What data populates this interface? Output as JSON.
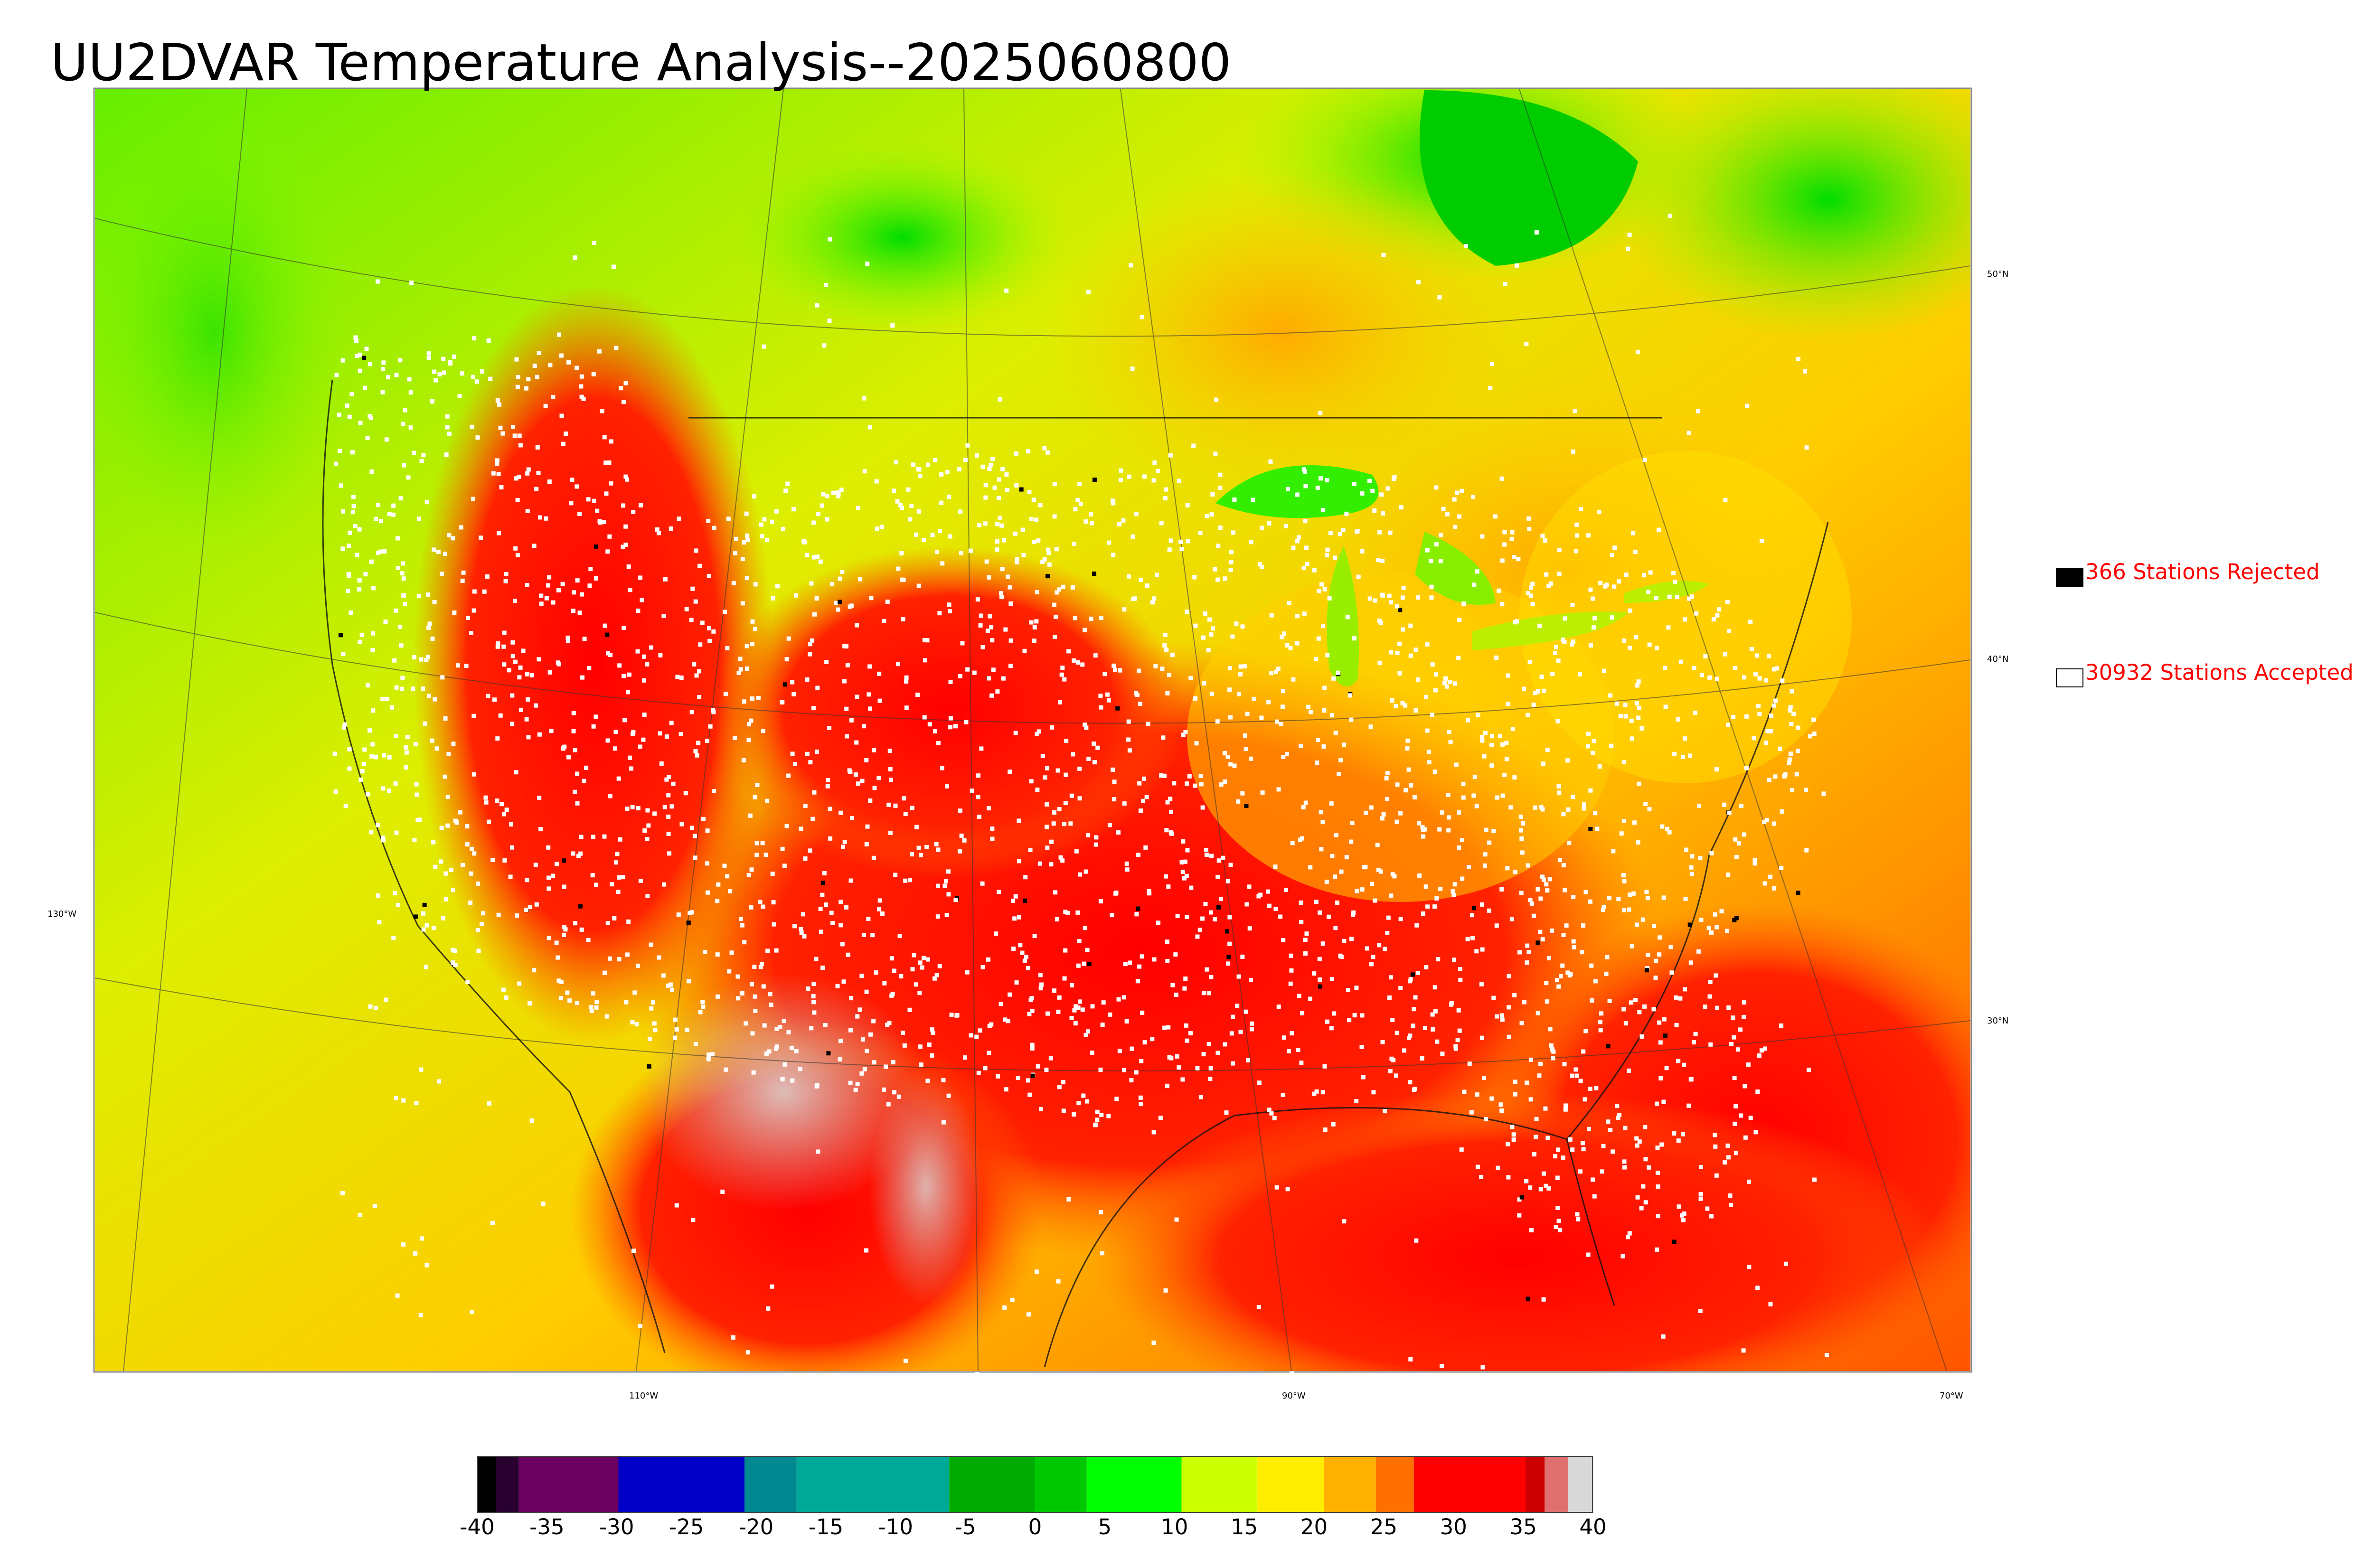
{
  "title": "UU2DVAR Temperature Analysis--2025060800",
  "legend": {
    "rejected": {
      "count": "366",
      "label": "366 Stations Rejected",
      "swatch_color": "#000000"
    },
    "accepted": {
      "count": "30932",
      "label": "30932 Stations Accepted",
      "swatch_color": "#ffffff"
    }
  },
  "latitude_labels": [
    "50°N",
    "40°N",
    "30°N"
  ],
  "longitude_labels": [
    "130°W",
    "110°W",
    "90°W",
    "70°W"
  ],
  "colorbar": {
    "ticks": [
      "-40",
      "-35",
      "-30",
      "-25",
      "-20",
      "-15",
      "-10",
      "-5",
      "0",
      "5",
      "10",
      "15",
      "20",
      "25",
      "30",
      "35",
      "40"
    ],
    "range": [
      -40,
      40
    ],
    "unit_shown": "",
    "colors": {
      "cold_extreme": "#000000",
      "very_cold": "#6b0060",
      "cold": "#0000c8",
      "cool_teal": "#00a898",
      "near_zero": "#00b400",
      "mild": "#00ff00",
      "warm": "#ffff00",
      "hot": "#ff8c00",
      "very_hot": "#ff0000",
      "extreme": "#d0d0d0"
    }
  },
  "map": {
    "projection": "lambert-conformal",
    "region": "Contiguous United States",
    "station_marker_accepted": "#ffffff",
    "station_marker_rejected": "#000000"
  }
}
